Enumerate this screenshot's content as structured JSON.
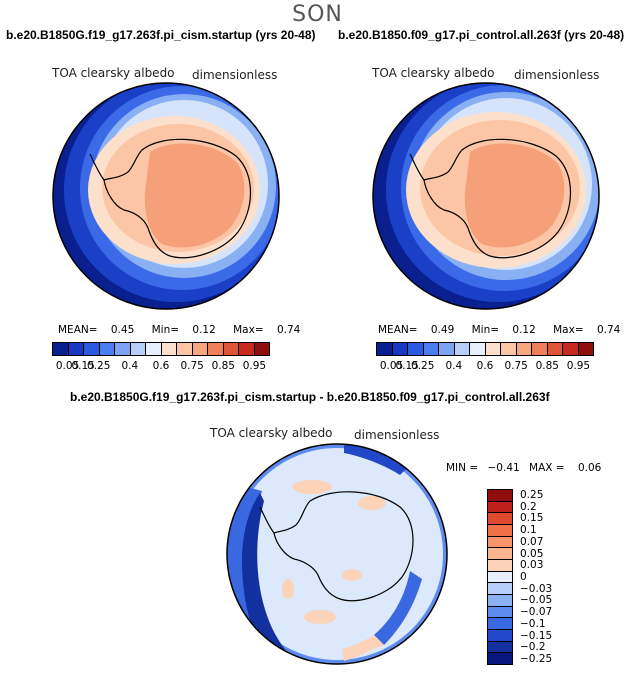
{
  "header": {
    "season": "SON"
  },
  "panels": [
    {
      "title": "b.e20.B1850G.f19_g17.263f.pi_cism.startup (yrs 20-48)",
      "variable": "TOA clearsky albedo",
      "units": "dimensionless",
      "mean_label": "MEAN=",
      "mean": "0.45",
      "min_label": "Min=",
      "min": "0.12",
      "max_label": "Max=",
      "max": "0.74"
    },
    {
      "title": "b.e20.B1850.f09_g17.pi_control.all.263f (yrs 20-48)",
      "variable": "TOA clearsky albedo",
      "units": "dimensionless",
      "mean_label": "MEAN=",
      "mean": "0.49",
      "min_label": "Min=",
      "min": "0.12",
      "max_label": "Max=",
      "max": "0.74"
    }
  ],
  "diff": {
    "title": "b.e20.B1850G.f19_g17.263f.pi_cism.startup - b.e20.B1850.f09_g17.pi_control.all.263f",
    "variable": "TOA clearsky albedo",
    "units": "dimensionless",
    "min_label": "MIN =",
    "min": "−0.41",
    "max_label": "MAX =",
    "max": "0.06"
  },
  "colorbar": {
    "colors": [
      "#0a2090",
      "#1738c0",
      "#2a5ae0",
      "#4a7ef0",
      "#7ca4f4",
      "#b6cff8",
      "#e8f0ff",
      "#fde0cc",
      "#fcc6a6",
      "#f8a67e",
      "#f0805a",
      "#e05536",
      "#c82a1e",
      "#900e0e"
    ],
    "labels": [
      "0.05",
      "0.15",
      "0.25",
      "0.4",
      "0.6",
      "0.75",
      "0.85",
      "0.95"
    ]
  },
  "diff_colorbar": {
    "colors": [
      "#900e0e",
      "#c0201a",
      "#e04a2e",
      "#f07048",
      "#f8946a",
      "#fab48e",
      "#fcd3b8",
      "#e8f0ff",
      "#b6cff8",
      "#8cb0f4",
      "#5e8cee",
      "#3a68e0",
      "#2048c8",
      "#1230a0",
      "#061880"
    ],
    "labels": [
      "0.25",
      "0.2",
      "0.15",
      "0.1",
      "0.07",
      "0.05",
      "0.03",
      "0",
      "−0.03",
      "−0.05",
      "−0.07",
      "−0.1",
      "−0.15",
      "−0.2",
      "−0.25"
    ]
  }
}
